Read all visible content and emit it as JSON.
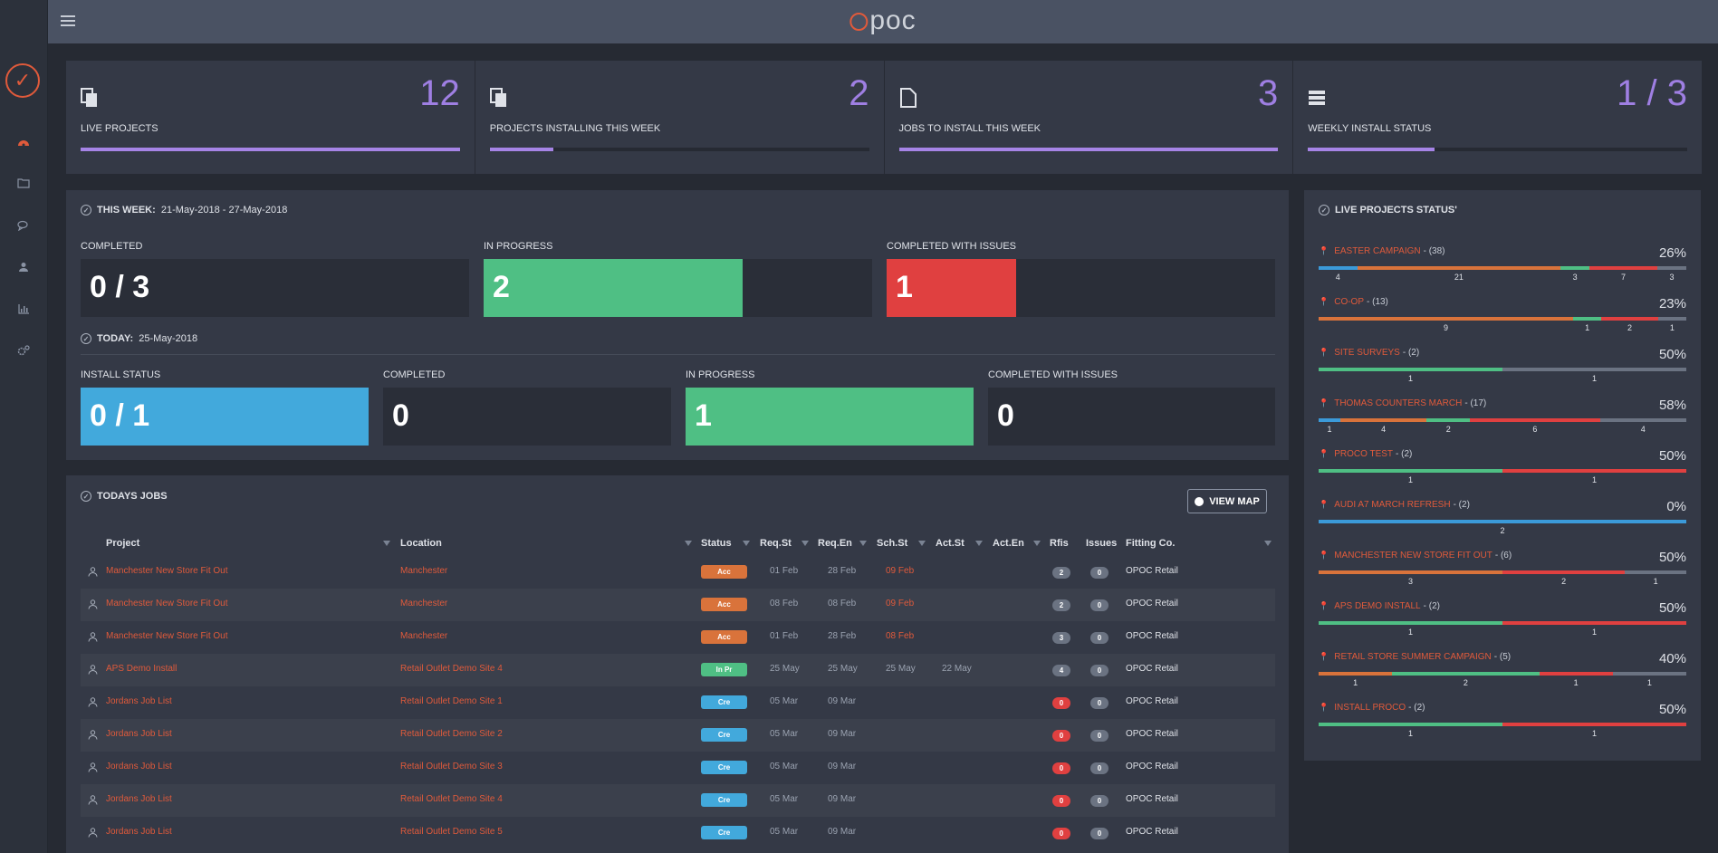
{
  "app": {
    "logo_text": "poc"
  },
  "stats": [
    {
      "label": "LIVE PROJECTS",
      "value": "12",
      "progress": 1.0
    },
    {
      "label": "PROJECTS INSTALLING THIS WEEK",
      "value": "2",
      "progress": 0.167
    },
    {
      "label": "JOBS TO INSTALL THIS WEEK",
      "value": "3",
      "progress": 1.0
    },
    {
      "label": "WEEKLY INSTALL STATUS",
      "value": "1 / 3",
      "progress": 0.333
    }
  ],
  "this_week": {
    "heading": "THIS WEEK:",
    "range": "21-May-2018 - 27-May-2018",
    "completed": {
      "label": "COMPLETED",
      "value": "0 / 3",
      "progress": 0
    },
    "in_progress": {
      "label": "IN PROGRESS",
      "value": "2",
      "progress": 0.667
    },
    "completed_with_issues": {
      "label": "COMPLETED WITH ISSUES",
      "value": "1",
      "progress": 0.333
    }
  },
  "today": {
    "heading": "TODAY:",
    "date": "25-May-2018",
    "install_status": {
      "label": "INSTALL STATUS",
      "value": "0 / 1",
      "progress": 1.0
    },
    "completed": {
      "label": "COMPLETED",
      "value": "0"
    },
    "in_progress": {
      "label": "IN PROGRESS",
      "value": "1",
      "progress": 1.0
    },
    "completed_with_issues": {
      "label": "COMPLETED WITH ISSUES",
      "value": "0"
    }
  },
  "todays_jobs": {
    "heading": "TODAYS JOBS",
    "view_map": "VIEW MAP",
    "columns": [
      "Project",
      "Location",
      "Status",
      "Req.St",
      "Req.En",
      "Sch.St",
      "Act.St",
      "Act.En",
      "Rfis",
      "Issues",
      "Fitting Co."
    ],
    "rows": [
      {
        "project": "Manchester New Store Fit Out",
        "location": "Manchester",
        "status": "Acc",
        "req_st": "01 Feb",
        "req_en": "28 Feb",
        "sch_st": "09 Feb",
        "act_st": "",
        "act_en": "",
        "rfis": "2",
        "issues": "0",
        "fitting": "OPOC Retail"
      },
      {
        "project": "Manchester New Store Fit Out",
        "location": "Manchester",
        "status": "Acc",
        "req_st": "08 Feb",
        "req_en": "08 Feb",
        "sch_st": "09 Feb",
        "act_st": "",
        "act_en": "",
        "rfis": "2",
        "issues": "0",
        "fitting": "OPOC Retail"
      },
      {
        "project": "Manchester New Store Fit Out",
        "location": "Manchester",
        "status": "Acc",
        "req_st": "01 Feb",
        "req_en": "28 Feb",
        "sch_st": "08 Feb",
        "act_st": "",
        "act_en": "",
        "rfis": "3",
        "issues": "0",
        "fitting": "OPOC Retail"
      },
      {
        "project": "APS Demo Install",
        "location": "Retail Outlet Demo Site 4",
        "status": "In Pr",
        "req_st": "25 May",
        "req_en": "25 May",
        "sch_st": "25 May",
        "act_st": "22 May",
        "act_en": "",
        "rfis": "4",
        "issues": "0",
        "fitting": "OPOC Retail"
      },
      {
        "project": "Jordans Job List",
        "location": "Retail Outlet Demo Site 1",
        "status": "Cre",
        "req_st": "05 Mar",
        "req_en": "09 Mar",
        "sch_st": "",
        "act_st": "",
        "act_en": "",
        "rfis": "0",
        "issues": "0",
        "fitting": "OPOC Retail"
      },
      {
        "project": "Jordans Job List",
        "location": "Retail Outlet Demo Site 2",
        "status": "Cre",
        "req_st": "05 Mar",
        "req_en": "09 Mar",
        "sch_st": "",
        "act_st": "",
        "act_en": "",
        "rfis": "0",
        "issues": "0",
        "fitting": "OPOC Retail"
      },
      {
        "project": "Jordans Job List",
        "location": "Retail Outlet Demo Site 3",
        "status": "Cre",
        "req_st": "05 Mar",
        "req_en": "09 Mar",
        "sch_st": "",
        "act_st": "",
        "act_en": "",
        "rfis": "0",
        "issues": "0",
        "fitting": "OPOC Retail"
      },
      {
        "project": "Jordans Job List",
        "location": "Retail Outlet Demo Site 4",
        "status": "Cre",
        "req_st": "05 Mar",
        "req_en": "09 Mar",
        "sch_st": "",
        "act_st": "",
        "act_en": "",
        "rfis": "0",
        "issues": "0",
        "fitting": "OPOC Retail"
      },
      {
        "project": "Jordans Job List",
        "location": "Retail Outlet Demo Site 5",
        "status": "Cre",
        "req_st": "05 Mar",
        "req_en": "09 Mar",
        "sch_st": "",
        "act_st": "",
        "act_en": "",
        "rfis": "0",
        "issues": "0",
        "fitting": "OPOC Retail"
      }
    ]
  },
  "live_projects_status": {
    "heading": "LIVE PROJECTS STATUS'",
    "items": [
      {
        "name": "EASTER CAMPAIGN",
        "count": "- (38)",
        "pct": "26%",
        "segments": [
          {
            "value": "4",
            "share": 0.105,
            "color": "#3b9ad9"
          },
          {
            "value": "21",
            "share": 0.553,
            "color": "#d9733b"
          },
          {
            "value": "3",
            "share": 0.079,
            "color": "#4fbf84"
          },
          {
            "value": "7",
            "share": 0.184,
            "color": "#e04040"
          },
          {
            "value": "3",
            "share": 0.079,
            "color": "#6b7382"
          }
        ]
      },
      {
        "name": "CO-OP",
        "count": "- (13)",
        "pct": "23%",
        "segments": [
          {
            "value": "9",
            "share": 0.692,
            "color": "#d9733b"
          },
          {
            "value": "1",
            "share": 0.077,
            "color": "#4fbf84"
          },
          {
            "value": "2",
            "share": 0.154,
            "color": "#e04040"
          },
          {
            "value": "1",
            "share": 0.077,
            "color": "#6b7382"
          }
        ]
      },
      {
        "name": "SITE SURVEYS",
        "count": "- (2)",
        "pct": "50%",
        "segments": [
          {
            "value": "1",
            "share": 0.5,
            "color": "#4fbf84"
          },
          {
            "value": "1",
            "share": 0.5,
            "color": "#6b7382"
          }
        ]
      },
      {
        "name": "THOMAS COUNTERS MARCH",
        "count": "- (17)",
        "pct": "58%",
        "segments": [
          {
            "value": "1",
            "share": 0.059,
            "color": "#3b9ad9"
          },
          {
            "value": "4",
            "share": 0.235,
            "color": "#d9733b"
          },
          {
            "value": "2",
            "share": 0.118,
            "color": "#4fbf84"
          },
          {
            "value": "6",
            "share": 0.353,
            "color": "#e04040"
          },
          {
            "value": "4",
            "share": 0.235,
            "color": "#6b7382"
          }
        ]
      },
      {
        "name": "PROCO TEST",
        "count": "- (2)",
        "pct": "50%",
        "segments": [
          {
            "value": "1",
            "share": 0.5,
            "color": "#4fbf84"
          },
          {
            "value": "1",
            "share": 0.5,
            "color": "#e04040"
          }
        ]
      },
      {
        "name": "AUDI A7 MARCH REFRESH",
        "count": "- (2)",
        "pct": "0%",
        "segments": [
          {
            "value": "2",
            "share": 1.0,
            "color": "#3b9ad9"
          }
        ]
      },
      {
        "name": "MANCHESTER NEW STORE FIT OUT",
        "count": "- (6)",
        "pct": "50%",
        "segments": [
          {
            "value": "3",
            "share": 0.5,
            "color": "#d9733b"
          },
          {
            "value": "2",
            "share": 0.333,
            "color": "#e04040"
          },
          {
            "value": "1",
            "share": 0.167,
            "color": "#6b7382"
          }
        ]
      },
      {
        "name": "APS DEMO INSTALL",
        "count": "- (2)",
        "pct": "50%",
        "segments": [
          {
            "value": "1",
            "share": 0.5,
            "color": "#4fbf84"
          },
          {
            "value": "1",
            "share": 0.5,
            "color": "#e04040"
          }
        ]
      },
      {
        "name": "RETAIL STORE SUMMER CAMPAIGN",
        "count": "- (5)",
        "pct": "40%",
        "segments": [
          {
            "value": "1",
            "share": 0.2,
            "color": "#d9733b"
          },
          {
            "value": "2",
            "share": 0.4,
            "color": "#4fbf84"
          },
          {
            "value": "1",
            "share": 0.2,
            "color": "#e04040"
          },
          {
            "value": "1",
            "share": 0.2,
            "color": "#6b7382"
          }
        ]
      },
      {
        "name": "INSTALL PROCO",
        "count": "- (2)",
        "pct": "50%",
        "segments": [
          {
            "value": "1",
            "share": 0.5,
            "color": "#4fbf84"
          },
          {
            "value": "1",
            "share": 0.5,
            "color": "#e04040"
          }
        ]
      }
    ]
  },
  "colors": {
    "accent": "#a684e6",
    "brand": "#e05a3b",
    "green": "#4fbf84",
    "red": "#e04040",
    "blue": "#42a9dc",
    "orange": "#d9733b"
  }
}
